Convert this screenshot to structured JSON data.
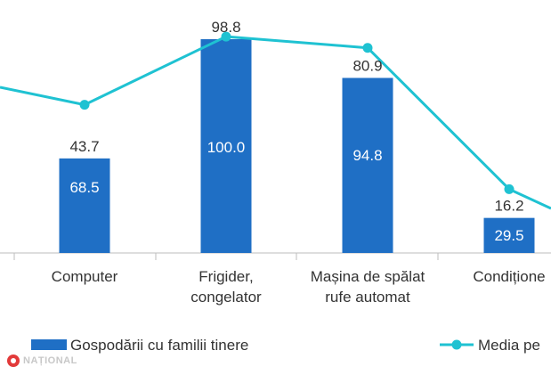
{
  "chart_data": {
    "type": "bar",
    "categories": [
      "",
      "Computer",
      "Frigider,\ncongelator",
      "Mașina de spălat\nrufe automat",
      "Condițione"
    ],
    "series": [
      {
        "name": "Gospodării cu familii tinere",
        "type": "bar",
        "color": "#1f6fc5",
        "values": [
          null,
          43.7,
          98.8,
          80.9,
          16.2
        ],
        "labels": [
          "",
          "43.7",
          "98.8",
          "80.9",
          "16.2"
        ]
      },
      {
        "name": "Media pe",
        "type": "line",
        "color": "#1fc2d2",
        "values": [
          null,
          68.5,
          100.0,
          94.8,
          29.5
        ],
        "labels": [
          "",
          "68.5",
          "100.0",
          "94.8",
          "29.5"
        ]
      }
    ],
    "ylim": [
      0,
      105
    ],
    "grid": false,
    "legend": "bottom"
  },
  "watermark": "NAȚIONAL"
}
